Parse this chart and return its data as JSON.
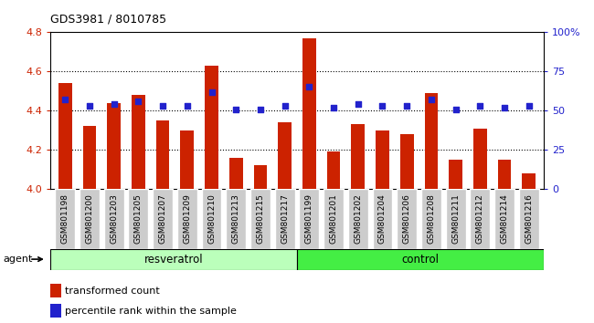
{
  "title": "GDS3981 / 8010785",
  "samples": [
    "GSM801198",
    "GSM801200",
    "GSM801203",
    "GSM801205",
    "GSM801207",
    "GSM801209",
    "GSM801210",
    "GSM801213",
    "GSM801215",
    "GSM801217",
    "GSM801199",
    "GSM801201",
    "GSM801202",
    "GSM801204",
    "GSM801206",
    "GSM801208",
    "GSM801211",
    "GSM801212",
    "GSM801214",
    "GSM801216"
  ],
  "bar_values": [
    4.54,
    4.32,
    4.44,
    4.48,
    4.35,
    4.3,
    4.63,
    4.16,
    4.12,
    4.34,
    4.77,
    4.19,
    4.33,
    4.3,
    4.28,
    4.49,
    4.15,
    4.31,
    4.15,
    4.08
  ],
  "percentile_values": [
    57,
    53,
    54,
    56,
    53,
    53,
    62,
    51,
    51,
    53,
    65,
    52,
    54,
    53,
    53,
    57,
    51,
    53,
    52,
    53
  ],
  "ylim_left": [
    4.0,
    4.8
  ],
  "ylim_right": [
    0,
    100
  ],
  "yticks_left": [
    4.0,
    4.2,
    4.4,
    4.6,
    4.8
  ],
  "yticks_right": [
    0,
    25,
    50,
    75,
    100
  ],
  "ytick_right_labels": [
    "0",
    "25",
    "50",
    "75",
    "100%"
  ],
  "bar_color": "#CC2200",
  "dot_color": "#2222CC",
  "bar_width": 0.55,
  "resv_color": "#BBFFBB",
  "ctrl_color": "#44EE44",
  "box_color": "#CCCCCC",
  "legend_bar_label": "transformed count",
  "legend_dot_label": "percentile rank within the sample",
  "xlabel_color": "#CC2200",
  "ylabel_right_color": "#2222CC",
  "n_resv": 10,
  "n_ctrl": 10
}
